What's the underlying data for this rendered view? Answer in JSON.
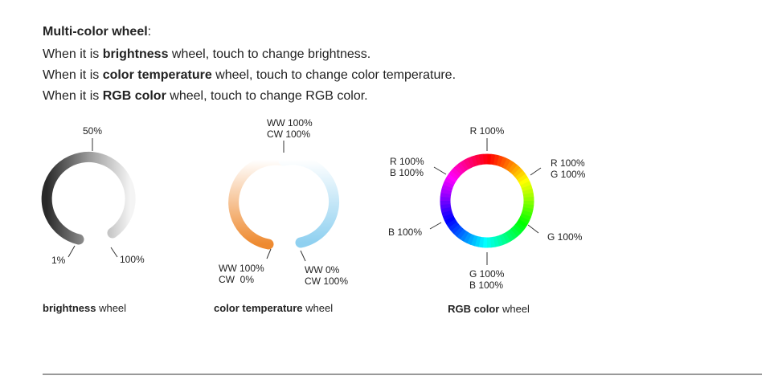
{
  "heading": {
    "bold": "Multi-color wheel",
    "rest": ":"
  },
  "lines": [
    {
      "before": "When it is ",
      "bold": "brightness",
      "after": " wheel, touch to change brightness."
    },
    {
      "before": "When it is ",
      "bold": "color temperature",
      "after": " wheel, touch to change color temperature."
    },
    {
      "before": "When it is ",
      "bold": "RGB color",
      "after": " wheel, touch to change RGB color."
    }
  ],
  "wheels": [
    {
      "labels": [
        [
          "50%"
        ],
        [
          "1%"
        ],
        [
          "100%"
        ]
      ],
      "caption": {
        "bold": "brightness",
        "rest": " wheel"
      }
    },
    {
      "labels": [
        [
          "WW 100%",
          "CW 100%"
        ],
        [
          "WW 100%",
          "CW  0%"
        ],
        [
          "WW 0%",
          "CW 100%"
        ]
      ],
      "caption": {
        "bold": "color temperature",
        "rest": " wheel"
      }
    },
    {
      "labels": [
        [
          "R 100%"
        ],
        [
          "R 100%",
          "B 100%"
        ],
        [
          "R 100%",
          "G 100%"
        ],
        [
          "B 100%"
        ],
        [
          "G 100%"
        ],
        [
          "G 100%",
          "B 100%"
        ]
      ],
      "caption": {
        "bold": "RGB color",
        "rest": " wheel"
      }
    }
  ]
}
